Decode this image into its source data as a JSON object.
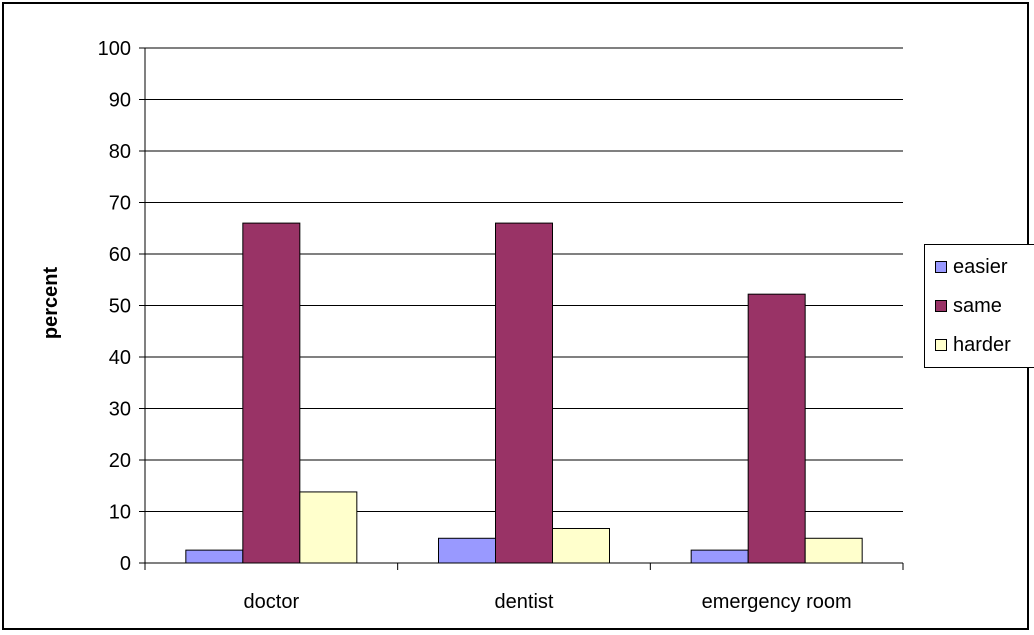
{
  "chart_data": {
    "type": "bar",
    "categories": [
      "doctor",
      "dentist",
      "emergency room"
    ],
    "series": [
      {
        "name": "easier",
        "values": [
          2.5,
          4.8,
          2.5
        ],
        "color": "#9999ff"
      },
      {
        "name": "same",
        "values": [
          66,
          66,
          52.2
        ],
        "color": "#993366"
      },
      {
        "name": "harder",
        "values": [
          13.8,
          6.7,
          4.8
        ],
        "color": "#ffffcc"
      }
    ],
    "ylabel": "percent",
    "ylim": [
      0,
      100
    ],
    "yticks": [
      "0",
      "10",
      "20",
      "30",
      "40",
      "50",
      "60",
      "70",
      "80",
      "90",
      "100"
    ],
    "grid": true,
    "legend_position": "right"
  }
}
